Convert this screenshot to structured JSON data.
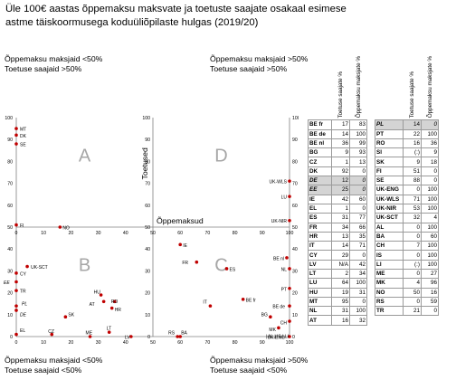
{
  "title": "Üle 100€ aastas õppemaksu maksvate ja toetuste saajate osakaal esimese astme täiskoormusega koduüliõpilaste hulgas (2019/20)",
  "quadrants": {
    "top_left": [
      "Õppemaksu maksjaid <50%",
      "Toetuse saajaid >50%"
    ],
    "top_right": [
      "Õppemaksu maksjaid >50%",
      "Toetuse saajaid >50%"
    ],
    "bottom_left": [
      "Õppemaksu maksjaid <50%",
      "Toetuse saajaid <50%"
    ],
    "bottom_right": [
      "Õppemaksu maksjaid >50%",
      "Toetuse saajaid <50%"
    ]
  },
  "colors": {
    "point": "#c00000",
    "letter": "#a6a6a6",
    "axis": "#808080",
    "grey_cell": "#d4d4d4"
  },
  "table_headers": [
    "Toetuse saajate %",
    "Õppemaksu maksjate %"
  ],
  "table_left": [
    [
      "BE fr",
      "17",
      "83"
    ],
    [
      "BE de",
      "14",
      "100"
    ],
    [
      "BE nl",
      "36",
      "99"
    ],
    [
      "BG",
      "9",
      "93"
    ],
    [
      "CZ",
      "1",
      "13"
    ],
    [
      "DK",
      "92",
      "0"
    ],
    [
      "DE",
      "12",
      "0"
    ],
    [
      "EE",
      "25",
      "0"
    ],
    [
      "IE",
      "42",
      "60"
    ],
    [
      "EL",
      "1",
      "0"
    ],
    [
      "ES",
      "31",
      "77"
    ],
    [
      "FR",
      "34",
      "66"
    ],
    [
      "HR",
      "13",
      "35"
    ],
    [
      "IT",
      "14",
      "71"
    ],
    [
      "CY",
      "29",
      "0"
    ],
    [
      "LV",
      "N/A",
      "42"
    ],
    [
      "LT",
      "2",
      "34"
    ],
    [
      "LU",
      "64",
      "100"
    ],
    [
      "HU",
      "19",
      "31"
    ],
    [
      "MT",
      "95",
      "0"
    ],
    [
      "NL",
      "31",
      "100"
    ],
    [
      "AT",
      "16",
      "32"
    ]
  ],
  "table_right": [
    [
      "PL",
      "14",
      "0"
    ],
    [
      "PT",
      "22",
      "100"
    ],
    [
      "RO",
      "16",
      "36"
    ],
    [
      "SI",
      "(:)",
      "9"
    ],
    [
      "SK",
      "9",
      "18"
    ],
    [
      "FI",
      "51",
      "0"
    ],
    [
      "SE",
      "88",
      "0"
    ],
    [
      "UK-ENG",
      "0",
      "100"
    ],
    [
      "UK-WLS",
      "71",
      "100"
    ],
    [
      "UK-NIR",
      "53",
      "100"
    ],
    [
      "UK-SCT",
      "32",
      "4"
    ],
    [
      "AL",
      "0",
      "100"
    ],
    [
      "BA",
      "0",
      "60"
    ],
    [
      "CH",
      "7",
      "100"
    ],
    [
      "IS",
      "0",
      "100"
    ],
    [
      "LI",
      "(:)",
      "100"
    ],
    [
      "ME",
      "0",
      "27"
    ],
    [
      "MK",
      "4",
      "96"
    ],
    [
      "NO",
      "50",
      "16"
    ],
    [
      "RS",
      "0",
      "59"
    ],
    [
      "TR",
      "21",
      "0"
    ]
  ],
  "chart_data": {
    "type": "scatter",
    "xlabel": "Õppemaksud",
    "ylabel": "Toetused",
    "xlim": [
      0,
      100
    ],
    "ylim": [
      0,
      100
    ],
    "ticks": [
      "0",
      "10",
      "20",
      "30",
      "40",
      "50",
      "60",
      "70",
      "80",
      "90",
      "100"
    ],
    "quadrant_letters": [
      "A",
      "B",
      "C",
      "D"
    ],
    "points": [
      {
        "label": "MT",
        "x": 0,
        "y": 95
      },
      {
        "label": "DK",
        "x": 0,
        "y": 92
      },
      {
        "label": "SE",
        "x": 0,
        "y": 88
      },
      {
        "label": "FI",
        "x": 0,
        "y": 51
      },
      {
        "label": "NO",
        "x": 16,
        "y": 50
      },
      {
        "label": "UK-SCT",
        "x": 4,
        "y": 32
      },
      {
        "label": "CY",
        "x": 0,
        "y": 29
      },
      {
        "label": "EE",
        "x": 0,
        "y": 25
      },
      {
        "label": "TR",
        "x": 0,
        "y": 21
      },
      {
        "label": "PL",
        "x": 0,
        "y": 14
      },
      {
        "label": "DE",
        "x": 0,
        "y": 12
      },
      {
        "label": "SK",
        "x": 18,
        "y": 9
      },
      {
        "label": "EL",
        "x": 0,
        "y": 1
      },
      {
        "label": "CZ",
        "x": 13,
        "y": 1
      },
      {
        "label": "ME",
        "x": 27,
        "y": 0
      },
      {
        "label": "LT",
        "x": 34,
        "y": 2
      },
      {
        "label": "LV",
        "x": 42,
        "y": 0
      },
      {
        "label": "HU",
        "x": 31,
        "y": 19
      },
      {
        "label": "RO",
        "x": 36,
        "y": 16
      },
      {
        "label": "AT",
        "x": 32,
        "y": 16
      },
      {
        "label": "HR",
        "x": 35,
        "y": 13
      },
      {
        "label": "IE",
        "x": 60,
        "y": 42
      },
      {
        "label": "FR",
        "x": 66,
        "y": 34
      },
      {
        "label": "ES",
        "x": 77,
        "y": 31
      },
      {
        "label": "IT",
        "x": 71,
        "y": 14
      },
      {
        "label": "BE fr",
        "x": 83,
        "y": 17
      },
      {
        "label": "RS",
        "x": 59,
        "y": 0
      },
      {
        "label": "BA",
        "x": 60,
        "y": 0
      },
      {
        "label": "UK-WLS",
        "x": 100,
        "y": 71
      },
      {
        "label": "LU",
        "x": 100,
        "y": 64
      },
      {
        "label": "UK-NIR",
        "x": 100,
        "y": 53
      },
      {
        "label": "BE nl",
        "x": 99,
        "y": 36
      },
      {
        "label": "NL",
        "x": 100,
        "y": 31
      },
      {
        "label": "PT",
        "x": 100,
        "y": 22
      },
      {
        "label": "BE de",
        "x": 100,
        "y": 14
      },
      {
        "label": "BG",
        "x": 93,
        "y": 9
      },
      {
        "label": "CH",
        "x": 100,
        "y": 7
      },
      {
        "label": "MK",
        "x": 96,
        "y": 4
      },
      {
        "label": "UK-ENG",
        "x": 100,
        "y": 0
      }
    ],
    "extra_labels": [
      {
        "text": "| AL | IS | LI",
        "x": 100,
        "y": 0
      }
    ]
  }
}
